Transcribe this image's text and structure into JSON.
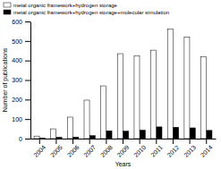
{
  "chart_data": {
    "type": "bar",
    "categories": [
      "2004",
      "2005",
      "2006",
      "2007",
      "2008",
      "2009",
      "2010",
      "2011",
      "2012",
      "2013",
      "2014"
    ],
    "series": [
      {
        "name": "metal organic framework+hydrogen storage",
        "color": "white",
        "values": [
          13,
          50,
          110,
          197,
          270,
          435,
          425,
          453,
          560,
          520,
          420
        ]
      },
      {
        "name": "metal organic framework+hydrogen storage+molecular simulation",
        "color": "black",
        "values": [
          3,
          7,
          8,
          15,
          40,
          38,
          43,
          60,
          58,
          55,
          42
        ]
      }
    ],
    "xlabel": "Years",
    "ylabel": "Number of publications",
    "ylim": [
      0,
      600
    ],
    "yticks": [
      0,
      100,
      200,
      300,
      400,
      500,
      600
    ],
    "legend": "upper left"
  }
}
